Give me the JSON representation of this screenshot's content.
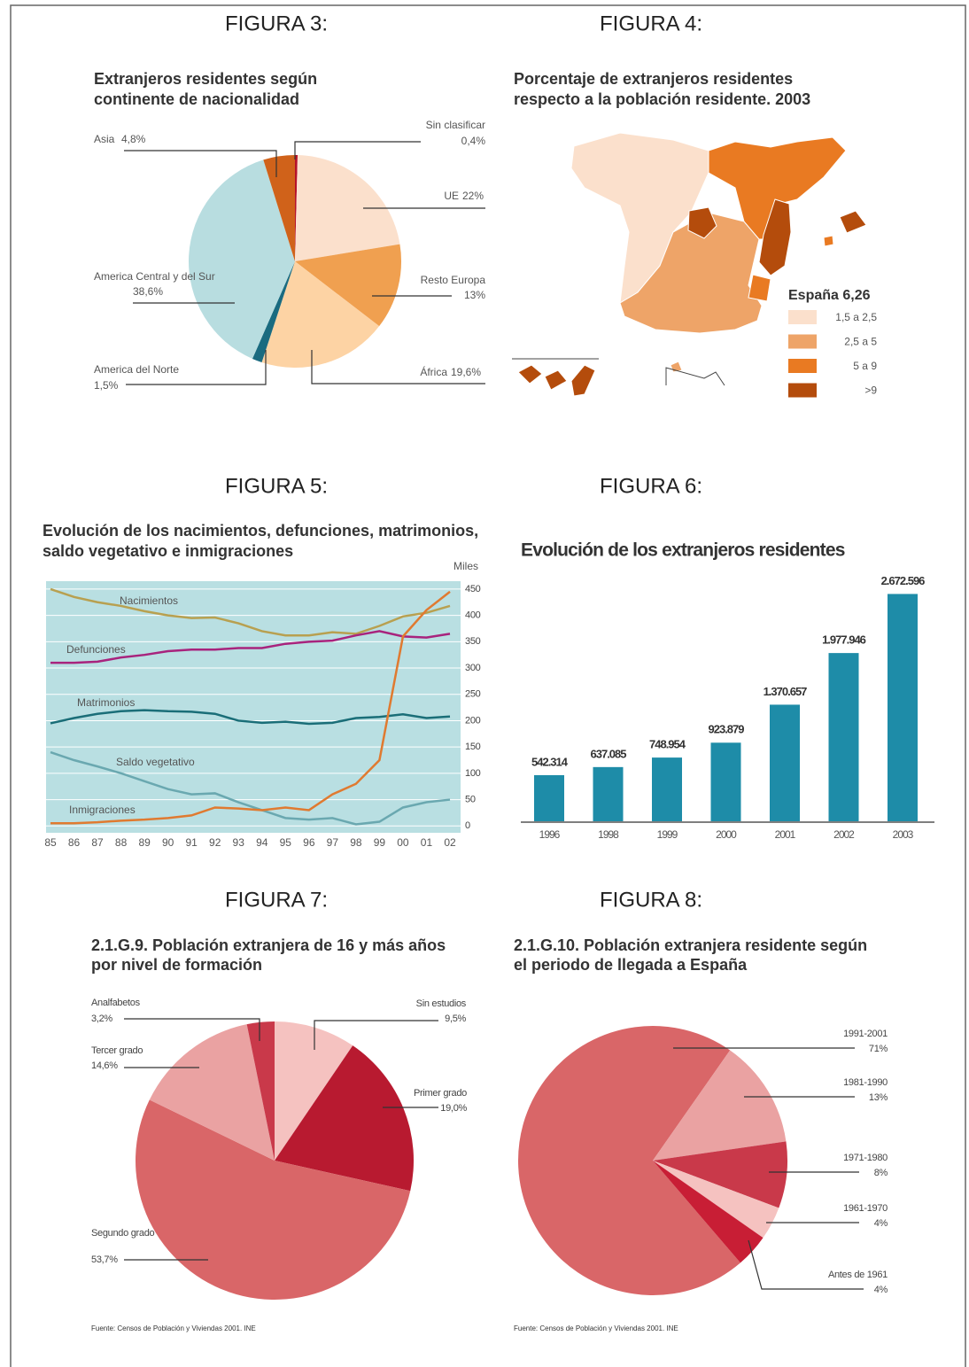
{
  "chart_data": [
    {
      "type": "pie",
      "label": "FIGURA 3:",
      "title": [
        "Extranjeros residentes según",
        "continente de nacionalidad"
      ],
      "categories": [
        "Sin clasificar",
        "UE",
        "Resto Europa",
        "África",
        "America del Norte",
        "America Central y del Sur",
        "Asia"
      ],
      "values": [
        0.4,
        22,
        13,
        19.6,
        1.5,
        38.6,
        4.8
      ],
      "value_labels": [
        "0,4%",
        "22%",
        "13%",
        "19,6%",
        "1,5%",
        "38,6%",
        "4,8%"
      ],
      "colors": [
        "#b5122a",
        "#fbe0cc",
        "#f0a050",
        "#fdd3a4",
        "#1a6b80",
        "#b8dde0",
        "#d0621a"
      ],
      "startangle": 0
    },
    {
      "type": "map",
      "label": "FIGURA 4:",
      "title": [
        "Porcentaje de extranjeros residentes",
        "respecto a la población residente. 2003"
      ],
      "legend_title": "España 6,26",
      "categories": [
        "1,5 a 2,5",
        "2,5 a 5",
        "5 a 9",
        ">9"
      ],
      "colors": [
        "#fbe0cc",
        "#eea468",
        "#e97a22",
        "#b44c0c"
      ]
    },
    {
      "type": "line",
      "label": "FIGURA 5:",
      "title": [
        "Evolución de los nacimientos, defunciones, matrimonios,",
        "saldo vegetativo e inmigraciones"
      ],
      "ylabel": "Miles",
      "categories": [
        "85",
        "86",
        "87",
        "88",
        "89",
        "90",
        "91",
        "92",
        "93",
        "94",
        "95",
        "96",
        "97",
        "98",
        "99",
        "00",
        "01",
        "02"
      ],
      "series": [
        {
          "name": "Nacimientos",
          "color": "#b8a050",
          "values": [
            450,
            435,
            425,
            418,
            408,
            400,
            395,
            396,
            385,
            370,
            362,
            362,
            368,
            365,
            380,
            398,
            405,
            418
          ]
        },
        {
          "name": "Defunciones",
          "color": "#a8237d",
          "values": [
            310,
            310,
            312,
            320,
            325,
            332,
            335,
            335,
            338,
            338,
            346,
            350,
            352,
            362,
            370,
            360,
            358,
            365
          ]
        },
        {
          "name": "Matrimonios",
          "color": "#1a6e78",
          "values": [
            195,
            205,
            213,
            218,
            220,
            218,
            217,
            213,
            200,
            196,
            198,
            194,
            196,
            205,
            207,
            212,
            205,
            208
          ]
        },
        {
          "name": "Saldo vegetativo",
          "color": "#6aa8b0",
          "values": [
            140,
            125,
            113,
            100,
            85,
            70,
            60,
            62,
            45,
            30,
            15,
            12,
            15,
            3,
            8,
            35,
            45,
            50
          ]
        },
        {
          "name": "Inmigraciones",
          "color": "#e07a30",
          "values": [
            5,
            5,
            7,
            10,
            12,
            15,
            20,
            35,
            33,
            30,
            35,
            30,
            60,
            80,
            125,
            360,
            410,
            445
          ]
        }
      ],
      "ylim": [
        -13,
        465
      ],
      "yticks": [
        0,
        50,
        100,
        150,
        200,
        250,
        300,
        350,
        400,
        450
      ],
      "grid": true,
      "background": "#b9dfe2"
    },
    {
      "type": "bar",
      "label": "FIGURA 6:",
      "title": "Evolución de los extranjeros residentes",
      "categories": [
        "1996",
        "1998",
        "1999",
        "2000",
        "2001",
        "2002",
        "2003"
      ],
      "values": [
        542314,
        637085,
        748954,
        923879,
        1370657,
        1977946,
        2672596
      ],
      "value_labels": [
        "542.314",
        "637.085",
        "748.954",
        "923.879",
        "1.370.657",
        "1.977.946",
        "2.672.596"
      ],
      "color": "#1e8ca8",
      "ylim": [
        0,
        3000000
      ]
    },
    {
      "type": "pie",
      "label": "FIGURA 7:",
      "title": [
        "2.1.G.9. Población extranjera de 16 y más años",
        "por nivel de formación"
      ],
      "categories": [
        "Sin estudios",
        "Primer grado",
        "Segundo grado",
        "Tercer grado",
        "Analfabetos"
      ],
      "values": [
        9.5,
        19.0,
        53.7,
        14.6,
        3.2
      ],
      "value_labels": [
        "9,5%",
        "19,0%",
        "53,7%",
        "14,6%",
        "3,2%"
      ],
      "colors": [
        "#f5c2c0",
        "#b81a30",
        "#d96668",
        "#eaa2a2",
        "#c9394a"
      ],
      "startangle": 0,
      "source": "Fuente: Censos de Población y Viviendas 2001. INE"
    },
    {
      "type": "pie",
      "label": "FIGURA 8:",
      "title": [
        "2.1.G.10. Población extranjera residente según",
        "el periodo de llegada a España"
      ],
      "categories": [
        "1991-2001",
        "1981-1990",
        "1971-1980",
        "1961-1970",
        "Antes de 1961"
      ],
      "values": [
        71,
        13,
        8,
        4,
        4
      ],
      "value_labels": [
        "71%",
        "13%",
        "8%",
        "4%",
        "4%"
      ],
      "colors": [
        "#d96668",
        "#eaa2a2",
        "#c9394a",
        "#f5c2c0",
        "#c81e35"
      ],
      "startangle": 139.4,
      "source": "Fuente: Censos de Población y Viviendas 2001. INE"
    }
  ]
}
